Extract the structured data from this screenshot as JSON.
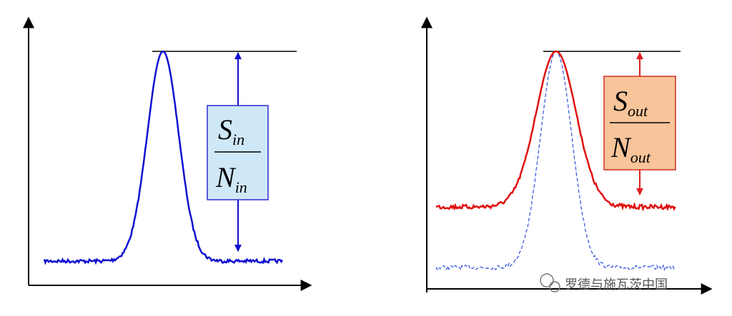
{
  "panels": [
    {
      "signal": "S",
      "signal_sub": "in",
      "noise": "N",
      "noise_sub": "in"
    },
    {
      "signal": "S",
      "signal_sub": "out",
      "noise": "N",
      "noise_sub": "out"
    }
  ],
  "watermark": "罗德与施瓦茨中国"
}
